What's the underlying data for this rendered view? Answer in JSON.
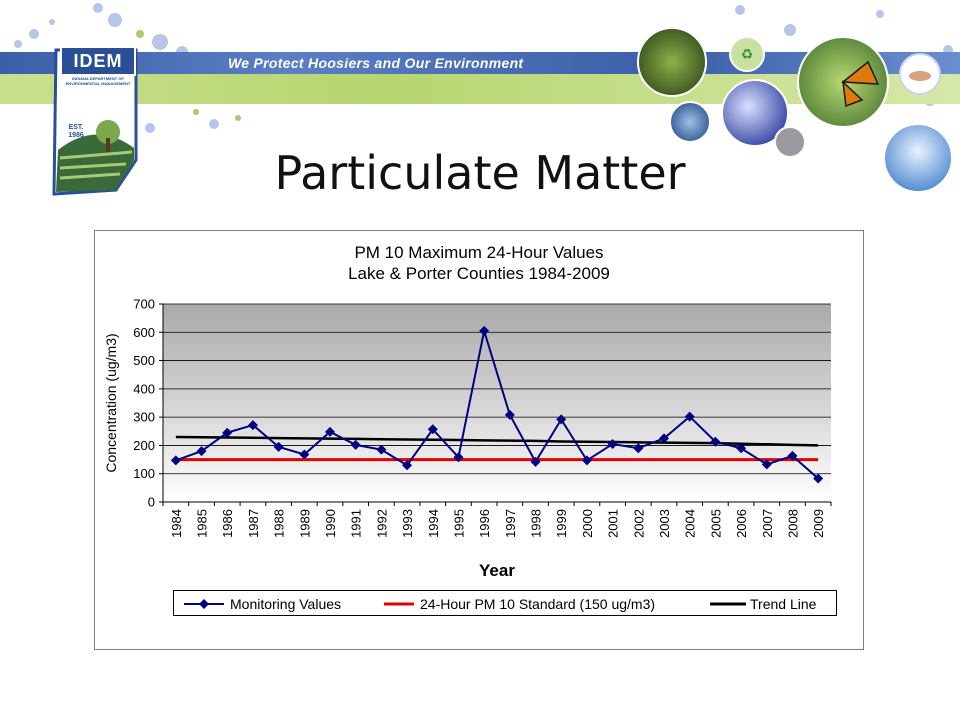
{
  "header": {
    "logo_text": "IDEM",
    "logo_subtext": "INDIANA DEPARTMENT OF ENVIRONMENTAL MANAGEMENT",
    "logo_est": "EST. 1986",
    "slogan": "We Protect Hoosiers and Our Environment"
  },
  "slide": {
    "title": "Particulate Matter"
  },
  "colors": {
    "series_marker": "#000080",
    "standard_line": "#e00000",
    "trend_line": "#000000",
    "banner_blue": "#3b5fa8",
    "banner_green": "#b7d56f"
  },
  "chart_data": {
    "type": "line",
    "title": "PM 10 Maximum 24-Hour Values",
    "subtitle": "Lake & Porter Counties 1984-2009",
    "xlabel": "Year",
    "ylabel": "Concentration  (ug/m3)",
    "ylim": [
      0,
      700
    ],
    "yticks": [
      0,
      100,
      200,
      300,
      400,
      500,
      600,
      700
    ],
    "grid": true,
    "legend": "bottom",
    "categories": [
      "1984",
      "1985",
      "1986",
      "1987",
      "1988",
      "1989",
      "1990",
      "1991",
      "1992",
      "1993",
      "1994",
      "1995",
      "1996",
      "1997",
      "1998",
      "1999",
      "2000",
      "2001",
      "2002",
      "2003",
      "2004",
      "2005",
      "2006",
      "2007",
      "2008",
      "2009"
    ],
    "series": [
      {
        "name": "Monitoring Values",
        "style": "line-diamond",
        "values": [
          147,
          180,
          245,
          272,
          195,
          168,
          248,
          202,
          185,
          130,
          257,
          158,
          605,
          308,
          142,
          292,
          147,
          205,
          190,
          225,
          302,
          213,
          190,
          133,
          163,
          83
        ]
      },
      {
        "name": "24-Hour PM 10 Standard (150 ug/m3)",
        "style": "line",
        "values": [
          150,
          150,
          150,
          150,
          150,
          150,
          150,
          150,
          150,
          150,
          150,
          150,
          150,
          150,
          150,
          150,
          150,
          150,
          150,
          150,
          150,
          150,
          150,
          150,
          150,
          150
        ]
      },
      {
        "name": "Trend Line",
        "style": "line",
        "values": [
          230,
          229,
          228,
          227,
          226,
          225,
          224,
          223,
          222,
          221,
          220,
          219,
          218,
          217,
          216,
          214,
          213,
          212,
          211,
          210,
          209,
          208,
          206,
          204,
          202,
          200
        ]
      }
    ]
  }
}
